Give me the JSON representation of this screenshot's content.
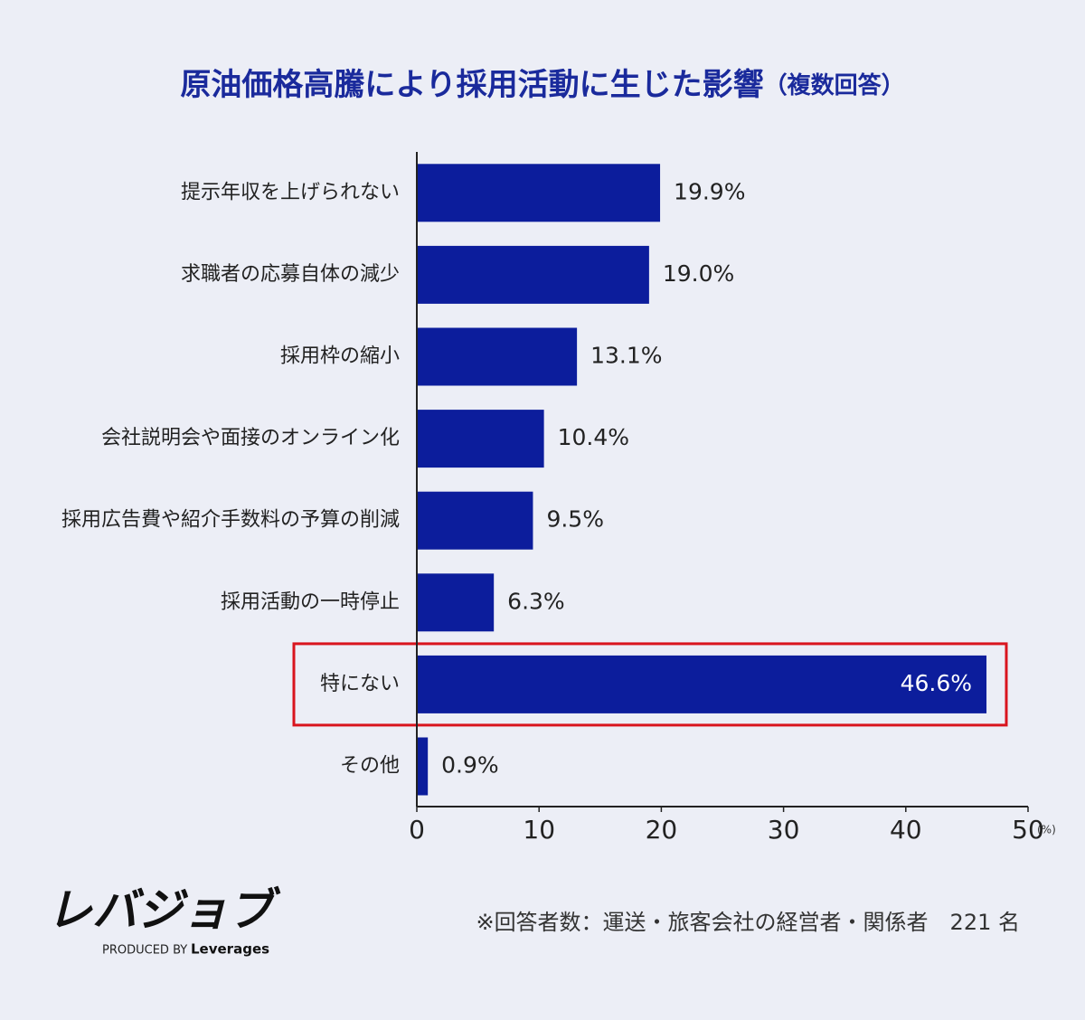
{
  "chart_data": {
    "type": "hbar",
    "title": "原油価格高騰により採用活動に生じた影響",
    "subtitle": "（複数回答）",
    "categories": [
      "提示年収を上げられない",
      "求職者の応募自体の減少",
      "採用枠の縮小",
      "会社説明会や面接のオンライン化",
      "採用広告費や紹介手数料の予算の削減",
      "採用活動の一時停止",
      "特にない",
      "その他"
    ],
    "values": [
      19.9,
      19.0,
      13.1,
      10.4,
      9.5,
      6.3,
      46.6,
      0.9
    ],
    "value_labels": [
      "19.9%",
      "19.0%",
      "13.1%",
      "10.4%",
      "9.5%",
      "6.3%",
      "46.6%",
      "0.9%"
    ],
    "color": "#0c1d9c",
    "highlight": 6,
    "highlight_color": "#d9141e",
    "xlim": [
      0,
      50
    ],
    "xticks": [
      0,
      10,
      20,
      30,
      40,
      50
    ],
    "x_unit": "(%)",
    "note": "※回答者数：運送・旅客会社の経営者・関係者　221 名"
  },
  "logo": {
    "name": "レバジョブ",
    "produced_by": "PRODUCED BY",
    "company": "Leverages"
  }
}
